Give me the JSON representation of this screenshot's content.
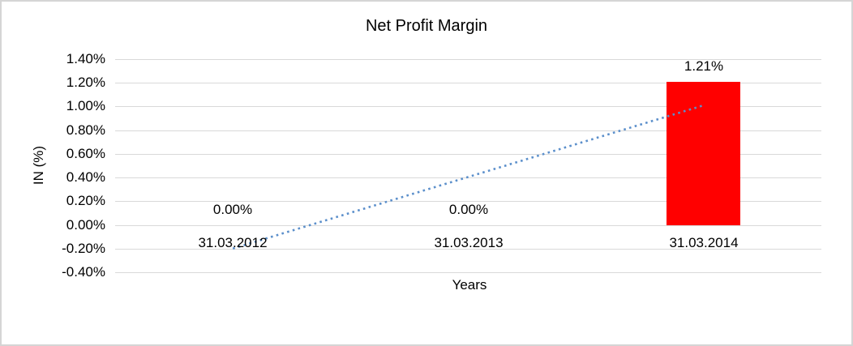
{
  "chart_data": {
    "type": "bar",
    "title": "Net Profit Margin",
    "xlabel": "Years",
    "ylabel": "IN (%)",
    "categories": [
      "31.03.2012",
      "31.03.2013",
      "31.03.2014"
    ],
    "values": [
      0.0,
      0.0,
      1.21
    ],
    "data_labels": [
      "0.00%",
      "0.00%",
      "1.21%"
    ],
    "y_ticks": [
      {
        "label": "1.40%",
        "value": 1.4
      },
      {
        "label": "1.20%",
        "value": 1.2
      },
      {
        "label": "1.00%",
        "value": 1.0
      },
      {
        "label": "0.80%",
        "value": 0.8
      },
      {
        "label": "0.60%",
        "value": 0.6
      },
      {
        "label": "0.40%",
        "value": 0.4
      },
      {
        "label": "0.20%",
        "value": 0.2
      },
      {
        "label": "0.00%",
        "value": 0.0
      },
      {
        "label": "-0.20%",
        "value": -0.2
      },
      {
        "label": "-0.40%",
        "value": -0.4
      }
    ],
    "ylim": [
      -0.4,
      1.4
    ],
    "grid": true,
    "legend": "none",
    "colors": {
      "bar": "#ff0000",
      "gridline": "#d9d9d9",
      "trendline": "#5b8fcb",
      "text": "#000000"
    },
    "trendline": {
      "type": "linear",
      "style": "dotted",
      "start_value": -0.2,
      "end_value": 1.01
    }
  }
}
